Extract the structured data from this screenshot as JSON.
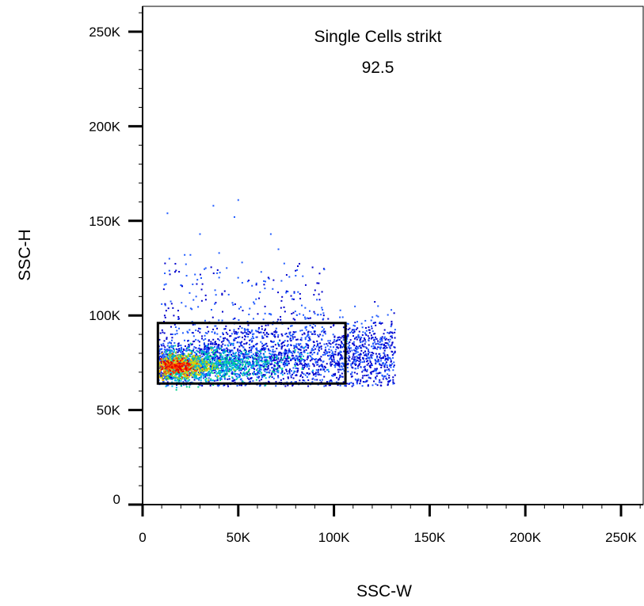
{
  "chart_data": {
    "type": "scatter",
    "plot_style": "pseudocolor density dot plot",
    "xlabel": "SSC-W",
    "ylabel": "SSC-H",
    "xlim": [
      0,
      262144
    ],
    "ylim": [
      0,
      262144
    ],
    "x_ticks": [
      {
        "value": 0,
        "label": "0"
      },
      {
        "value": 50000,
        "label": "50K"
      },
      {
        "value": 100000,
        "label": "100K"
      },
      {
        "value": 150000,
        "label": "150K"
      },
      {
        "value": 200000,
        "label": "200K"
      },
      {
        "value": 250000,
        "label": "250K"
      }
    ],
    "y_ticks": [
      {
        "value": 0,
        "label": "0"
      },
      {
        "value": 50000,
        "label": "50K"
      },
      {
        "value": 100000,
        "label": "100K"
      },
      {
        "value": 150000,
        "label": "150K"
      },
      {
        "value": 200000,
        "label": "200K"
      },
      {
        "value": 250000,
        "label": "250K"
      }
    ],
    "gate": {
      "name": "Single Cells strikt",
      "percent": "92.5",
      "x_range": [
        8000,
        106000
      ],
      "y_range": [
        64000,
        96000
      ]
    },
    "population": {
      "core_center": [
        18000,
        73000
      ],
      "density_colors": [
        "#0000cc",
        "#1e5aff",
        "#00b4e6",
        "#00d28c",
        "#aadc1e",
        "#ffc800",
        "#ff5000",
        "#e60000"
      ]
    },
    "outliers": [
      [
        13000,
        154000
      ],
      [
        50000,
        161000
      ],
      [
        48000,
        152000
      ],
      [
        37000,
        158000
      ],
      [
        30000,
        143000
      ],
      [
        67000,
        143000
      ],
      [
        14000,
        130000
      ],
      [
        22000,
        132000
      ],
      [
        25000,
        132000
      ],
      [
        71000,
        135000
      ],
      [
        40000,
        133000
      ],
      [
        80000,
        121000
      ],
      [
        55000,
        118000
      ],
      [
        20000,
        116000
      ],
      [
        62000,
        123000
      ],
      [
        33000,
        125000
      ],
      [
        45000,
        111000
      ],
      [
        75000,
        112000
      ],
      [
        10000,
        106000
      ],
      [
        28000,
        110000
      ],
      [
        85000,
        104000
      ],
      [
        90000,
        101000
      ],
      [
        94000,
        103000
      ],
      [
        58000,
        107000
      ],
      [
        68000,
        114000
      ],
      [
        40000,
        120000
      ],
      [
        23000,
        121000
      ],
      [
        52000,
        128000
      ],
      [
        64000,
        101000
      ],
      [
        36000,
        103000
      ]
    ]
  }
}
